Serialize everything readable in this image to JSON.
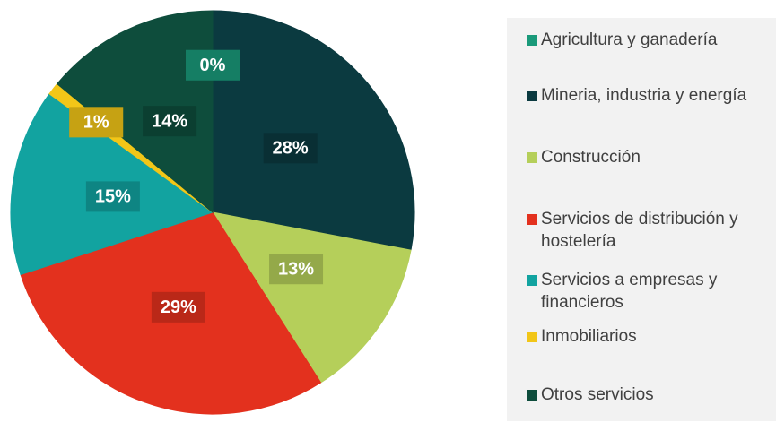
{
  "chart_data": {
    "type": "pie",
    "categories": [
      "Agricultura y ganadería",
      "Mineria, industria y energía",
      "Construcción",
      "Servicios de distribución y hostelería",
      "Servicios a empresas y financieros",
      "Inmobiliarios",
      "Otros servicios"
    ],
    "values": [
      0,
      28,
      13,
      29,
      15,
      1,
      14
    ],
    "value_labels": [
      "0%",
      "28%",
      "13%",
      "29%",
      "15%",
      "1%",
      "14%"
    ],
    "colors": [
      "#1a9a7a",
      "#0b3a40",
      "#b5cf5a",
      "#e3311e",
      "#12a3a0",
      "#f2c618",
      "#0e4d3c"
    ],
    "legend": "right"
  }
}
